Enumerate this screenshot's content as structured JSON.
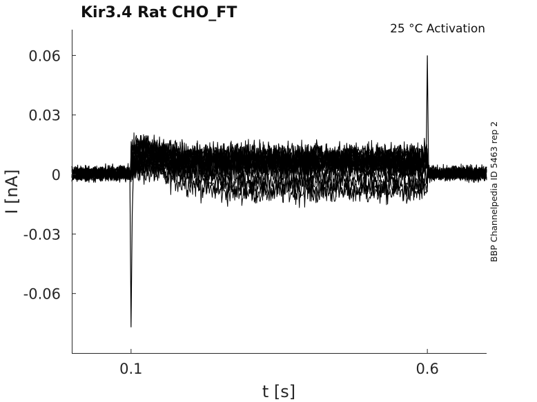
{
  "chart_data": {
    "type": "line",
    "title": "Kir3.4  Rat  CHO_FT",
    "subtitle": "25 °C  Activation",
    "side_label": "BBP Channelpedia ID 5463 rep 2",
    "xlabel": "t [s]",
    "ylabel": "I [nA]",
    "xlim": [
      0.0,
      0.7
    ],
    "ylim": [
      -0.09,
      0.073
    ],
    "xticks": [
      0.1,
      0.6
    ],
    "xtick_labels": [
      "0.1",
      "0.6"
    ],
    "yticks": [
      0.06,
      0.03,
      0,
      -0.03,
      -0.06
    ],
    "ytick_labels": [
      "0.06",
      "0.03",
      "0",
      "-0.03",
      "-0.06"
    ],
    "grid": false,
    "line_color": "#000000",
    "series_count": 16,
    "stimulus_on": 0.1,
    "stimulus_off": 0.6,
    "peak_transient_max": 0.06,
    "peak_transient_min": -0.077
  }
}
